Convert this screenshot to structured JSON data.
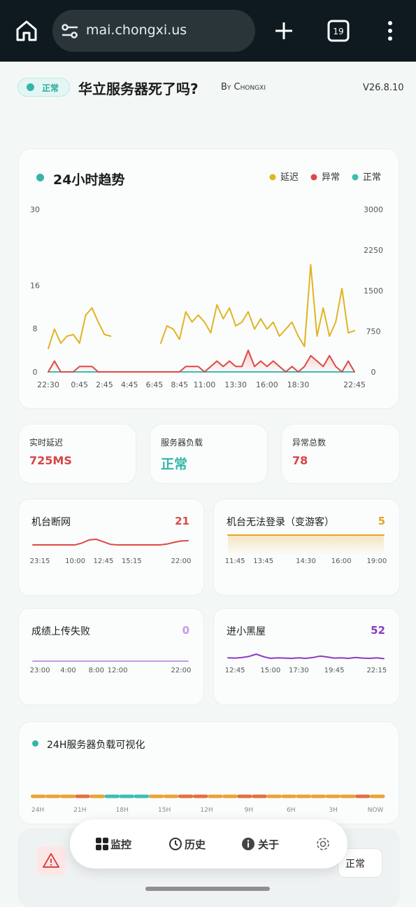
{
  "browser": {
    "url": "mai.chongxi.us",
    "tab_count": 19
  },
  "header": {
    "status": "正常",
    "title": "华立服务器死了吗?",
    "author": "By Chongxi",
    "version": "V26.8.10"
  },
  "chart_data": [
    {
      "type": "line",
      "title": "24小时趋势",
      "categories": [
        "22:30",
        null,
        null,
        null,
        null,
        "0:45",
        null,
        null,
        null,
        "2:45",
        null,
        null,
        null,
        "4:45",
        null,
        null,
        null,
        "6:45",
        null,
        null,
        null,
        "8:45",
        null,
        null,
        null,
        "11:00",
        null,
        null,
        null,
        null,
        "13:30",
        null,
        null,
        null,
        null,
        "16:00",
        null,
        null,
        null,
        null,
        "18:30",
        null,
        null,
        null,
        null,
        null,
        null,
        null,
        null,
        "22:45"
      ],
      "series": [
        {
          "name": "延迟",
          "color": "#e3b321",
          "axis": "y2",
          "values": [
            430,
            790,
            530,
            660,
            690,
            530,
            1050,
            1180,
            920,
            690,
            660,
            null,
            null,
            null,
            null,
            null,
            null,
            null,
            530,
            850,
            790,
            600,
            1110,
            920,
            1050,
            920,
            720,
            1240,
            980,
            1180,
            850,
            920,
            1110,
            790,
            980,
            790,
            920,
            660,
            790,
            920,
            660,
            470,
            1980,
            660,
            1180,
            660,
            920,
            1540,
            720,
            760
          ]
        },
        {
          "name": "异常",
          "color": "#dc4a45",
          "area": true,
          "values": [
            0,
            2,
            0,
            0,
            0,
            1,
            1,
            1,
            0,
            0,
            0,
            0,
            0,
            0,
            0,
            0,
            0,
            0,
            0,
            0,
            0,
            0,
            1,
            1,
            1,
            0,
            1,
            2,
            1,
            2,
            1,
            1,
            4,
            1,
            2,
            1,
            2,
            1,
            0,
            1,
            0,
            1,
            3,
            2,
            1,
            3,
            1,
            0,
            2,
            0
          ]
        },
        {
          "name": "正常",
          "color": "#3dbdb1",
          "values": [
            0,
            0,
            0,
            0,
            0,
            0,
            0,
            0,
            0,
            0,
            0,
            0,
            0,
            0,
            0,
            0,
            0,
            0,
            0,
            0,
            0,
            0,
            0,
            0,
            0,
            0,
            0,
            0,
            0,
            0,
            0,
            0,
            0,
            0,
            0,
            0,
            0,
            0,
            0,
            0,
            0,
            0,
            0,
            0,
            0,
            0,
            0,
            0,
            0,
            0
          ]
        }
      ],
      "ylim": [
        0,
        30
      ],
      "yticks": [
        0,
        8,
        16,
        30
      ],
      "y2lim": [
        0,
        3000
      ],
      "y2ticks": [
        0,
        750,
        1500,
        2250,
        3000
      ]
    },
    {
      "type": "line",
      "title": "机台断网",
      "total": 21,
      "color": "#dc4a45",
      "ylim": [
        0,
        10
      ],
      "categories": [
        null,
        "23:15",
        null,
        null,
        null,
        null,
        "10:00",
        null,
        null,
        null,
        "12:45",
        null,
        null,
        null,
        "15:15",
        null,
        null,
        null,
        null,
        null,
        null,
        "22:00",
        null
      ],
      "values": [
        3.5,
        3.5,
        3.5,
        3.5,
        3.5,
        3.5,
        3.5,
        4.2,
        5.3,
        5.5,
        4.6,
        3.7,
        3.5,
        3.5,
        3.5,
        3.5,
        3.5,
        3.5,
        3.5,
        3.8,
        4.4,
        4.9,
        5
      ]
    },
    {
      "type": "line",
      "title": "机台无法登录（变游客）",
      "total": 5,
      "color": "#e6a524",
      "area": true,
      "ylim": [
        0,
        10
      ],
      "categories": [
        null,
        "11:45",
        null,
        null,
        null,
        "13:45",
        null,
        null,
        null,
        null,
        null,
        "14:30",
        null,
        null,
        null,
        null,
        "16:00",
        null,
        null,
        null,
        null,
        "19:00",
        null
      ],
      "values": [
        7,
        7,
        7,
        7,
        7,
        7,
        7,
        7,
        7,
        7,
        7,
        7,
        7,
        7,
        7,
        7,
        7,
        7,
        7,
        7,
        7,
        7,
        7
      ]
    },
    {
      "type": "line",
      "title": "成绩上传失败",
      "total": 0,
      "color": "#c39be6",
      "ylim": [
        0,
        10
      ],
      "categories": [
        null,
        "23:00",
        null,
        null,
        null,
        "4:00",
        null,
        null,
        null,
        "8:00",
        null,
        null,
        "12:00",
        null,
        null,
        null,
        null,
        null,
        null,
        null,
        null,
        "22:00",
        null
      ],
      "values": [
        1,
        1,
        1,
        1,
        1,
        1,
        1,
        1,
        1,
        1,
        1,
        1,
        1,
        1,
        1,
        1,
        1,
        1,
        1,
        1,
        1,
        1,
        1
      ]
    },
    {
      "type": "line",
      "title": "进小黑屋",
      "total": 52,
      "color": "#8a3bc2",
      "ylim": [
        0,
        10
      ],
      "categories": [
        null,
        "12:45",
        null,
        null,
        null,
        null,
        "15:00",
        null,
        null,
        null,
        "17:30",
        null,
        null,
        null,
        null,
        "19:45",
        null,
        null,
        null,
        null,
        null,
        "22:15",
        null
      ],
      "values": [
        2.2,
        2.1,
        2.3,
        2.7,
        3.5,
        2.6,
        2,
        2.2,
        2.1,
        2,
        2.2,
        2,
        2.3,
        2.8,
        2.5,
        2.1,
        2.2,
        2,
        2.3,
        2.1,
        2,
        2.2,
        1.9
      ]
    }
  ],
  "stats": [
    {
      "label": "实时延迟",
      "value": "725MS",
      "color": "#d94444"
    },
    {
      "label": "服务器负载",
      "value": "正常",
      "color": "#35b5a8"
    },
    {
      "label": "异常总数",
      "value": 78,
      "color": "#d94444"
    }
  ],
  "load": {
    "title": "24H服务器负载可视化",
    "segment_colors": [
      "#e9a436",
      "#e9a436",
      "#e9a436",
      "#e3703f",
      "#e9a436",
      "#3fbdb3",
      "#3fbdb3",
      "#3fbdb3",
      "#e9a436",
      "#e9a436",
      "#e3703f",
      "#e3703f",
      "#e9a436",
      "#e9a436",
      "#e3703f",
      "#e3703f",
      "#e9a436",
      "#e9a436",
      "#e9a436",
      "#e9a436",
      "#e9a436",
      "#e9a436",
      "#e3703f",
      "#e9a436"
    ],
    "x_labels": [
      "24H",
      "21H",
      "18H",
      "15H",
      "12H",
      "9H",
      "6H",
      "3H",
      "NOW"
    ]
  },
  "bottom_card": {
    "status": "正常"
  },
  "nav": {
    "items": [
      "监控",
      "历史",
      "关于"
    ]
  }
}
